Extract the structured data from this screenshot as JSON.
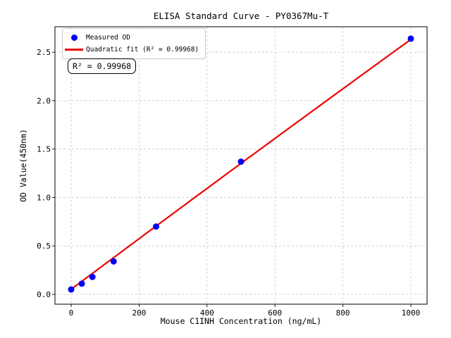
{
  "figure": {
    "background": "#ffffff"
  },
  "chart_data": {
    "type": "scatter",
    "title": "ELISA Standard Curve - PY0367Mu-T",
    "xlabel": "Mouse C1INH Concentration (ng/mL)",
    "ylabel": "OD Value(450nm)",
    "xlim": [
      -47.7,
      1047.7
    ],
    "ylim": [
      -0.102,
      2.763
    ],
    "x_ticks": [
      0,
      200,
      400,
      600,
      800,
      1000
    ],
    "x_tick_labels": [
      "0",
      "200",
      "400",
      "600",
      "800",
      "1000"
    ],
    "y_ticks": [
      0.0,
      0.5,
      1.0,
      1.5,
      2.0,
      2.5
    ],
    "y_tick_labels": [
      "0.0",
      "0.5",
      "1.0",
      "1.5",
      "2.0",
      "2.5"
    ],
    "grid": true,
    "grid_style": "dashed",
    "series": [
      {
        "name": "Measured OD",
        "type": "scatter",
        "color": "#0000ff",
        "x": [
          0,
          31.25,
          62.5,
          125,
          250,
          500,
          1000
        ],
        "y": [
          0.05,
          0.11,
          0.18,
          0.34,
          0.7,
          1.37,
          2.64
        ]
      },
      {
        "name": "Quadratic fit (R² = 0.99968)",
        "type": "line",
        "color": "#ee0000",
        "fit_coefficients": {
          "intercept": 0.052,
          "linear": 0.00262,
          "quadratic": -4e-08
        },
        "x_range": [
          0,
          1000
        ]
      }
    ],
    "legend": {
      "position": "upper-left",
      "entries": [
        {
          "label": "Measured OD",
          "marker": "dot",
          "color": "#0000ff"
        },
        {
          "label": "Quadratic fit (R² = 0.99968)",
          "marker": "line",
          "color": "#ee0000"
        }
      ]
    },
    "annotation": {
      "text": "R² = 0.99968"
    },
    "r_squared": 0.99968
  },
  "colors": {
    "point": "#0000ff",
    "fit_line": "#ee0000",
    "grid": "#c9c9c9",
    "axis": "#000000",
    "legend_border": "#c9c9c9"
  }
}
